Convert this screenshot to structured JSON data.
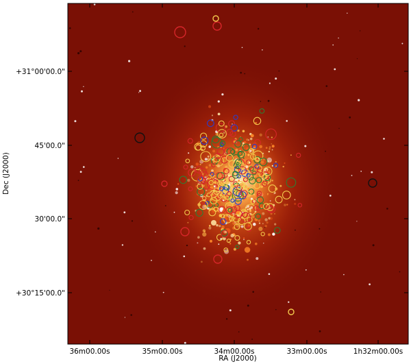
{
  "axes": {
    "xlabel": "RA (J2000)",
    "ylabel": "Dec (J2000)",
    "x_ticks": [
      "36m00.00s",
      "35m00.00s",
      "34m00.00s",
      "33m00.00s",
      "1h32m00.00s"
    ],
    "y_ticks": [
      "+31°00'00.0\"",
      "45'00.0\"",
      "30'00.0\"",
      "+30°15'00.0\""
    ]
  },
  "image": {
    "colormap": "red-hot",
    "background_color": "#7a1005",
    "frame_color": "#000000",
    "marker_colors": [
      "#f2c94c",
      "#d6262a",
      "#2f7d32",
      "#2a3cc9"
    ],
    "marker_shape": "open-circle"
  }
}
